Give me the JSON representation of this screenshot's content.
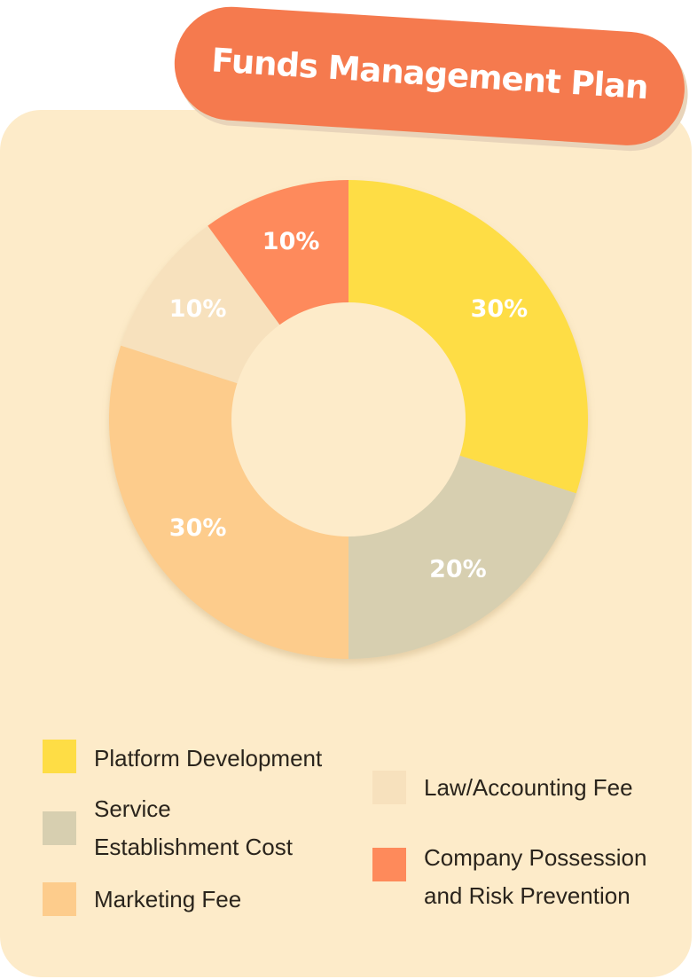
{
  "title": "Funds Management Plan",
  "colors": {
    "card_background": "#fdebc9",
    "title_background": "#f57a4e",
    "donut_hole": "#fdebc9"
  },
  "chart_data": {
    "type": "pie",
    "variant": "donut",
    "title": "Funds Management Plan",
    "slices": [
      {
        "label": "Platform Development",
        "value": 30,
        "display": "30%",
        "color": "#fedd45"
      },
      {
        "label": "Service Establishment Cost",
        "value": 20,
        "display": "20%",
        "color": "#d7cfb0"
      },
      {
        "label": "Marketing Fee",
        "value": 30,
        "display": "30%",
        "color": "#fdcc8c"
      },
      {
        "label": "Law/Accounting Fee",
        "value": 10,
        "display": "10%",
        "color": "#f7e1bd"
      },
      {
        "label": "Company Possession and Risk Prevention",
        "value": 10,
        "display": "10%",
        "color": "#fe8a5b"
      }
    ],
    "legend_position": "bottom"
  },
  "legend": {
    "items": [
      {
        "text": "Platform Development",
        "color": "#fedd45"
      },
      {
        "text": "Service\nEstablishment Cost",
        "color": "#d7cfb0"
      },
      {
        "text": "Marketing Fee",
        "color": "#fdcc8c"
      },
      {
        "text": "Law/Accounting Fee",
        "color": "#f7e1bd"
      },
      {
        "text": "Company Possession\nand Risk Prevention",
        "color": "#fe8a5b"
      }
    ]
  }
}
